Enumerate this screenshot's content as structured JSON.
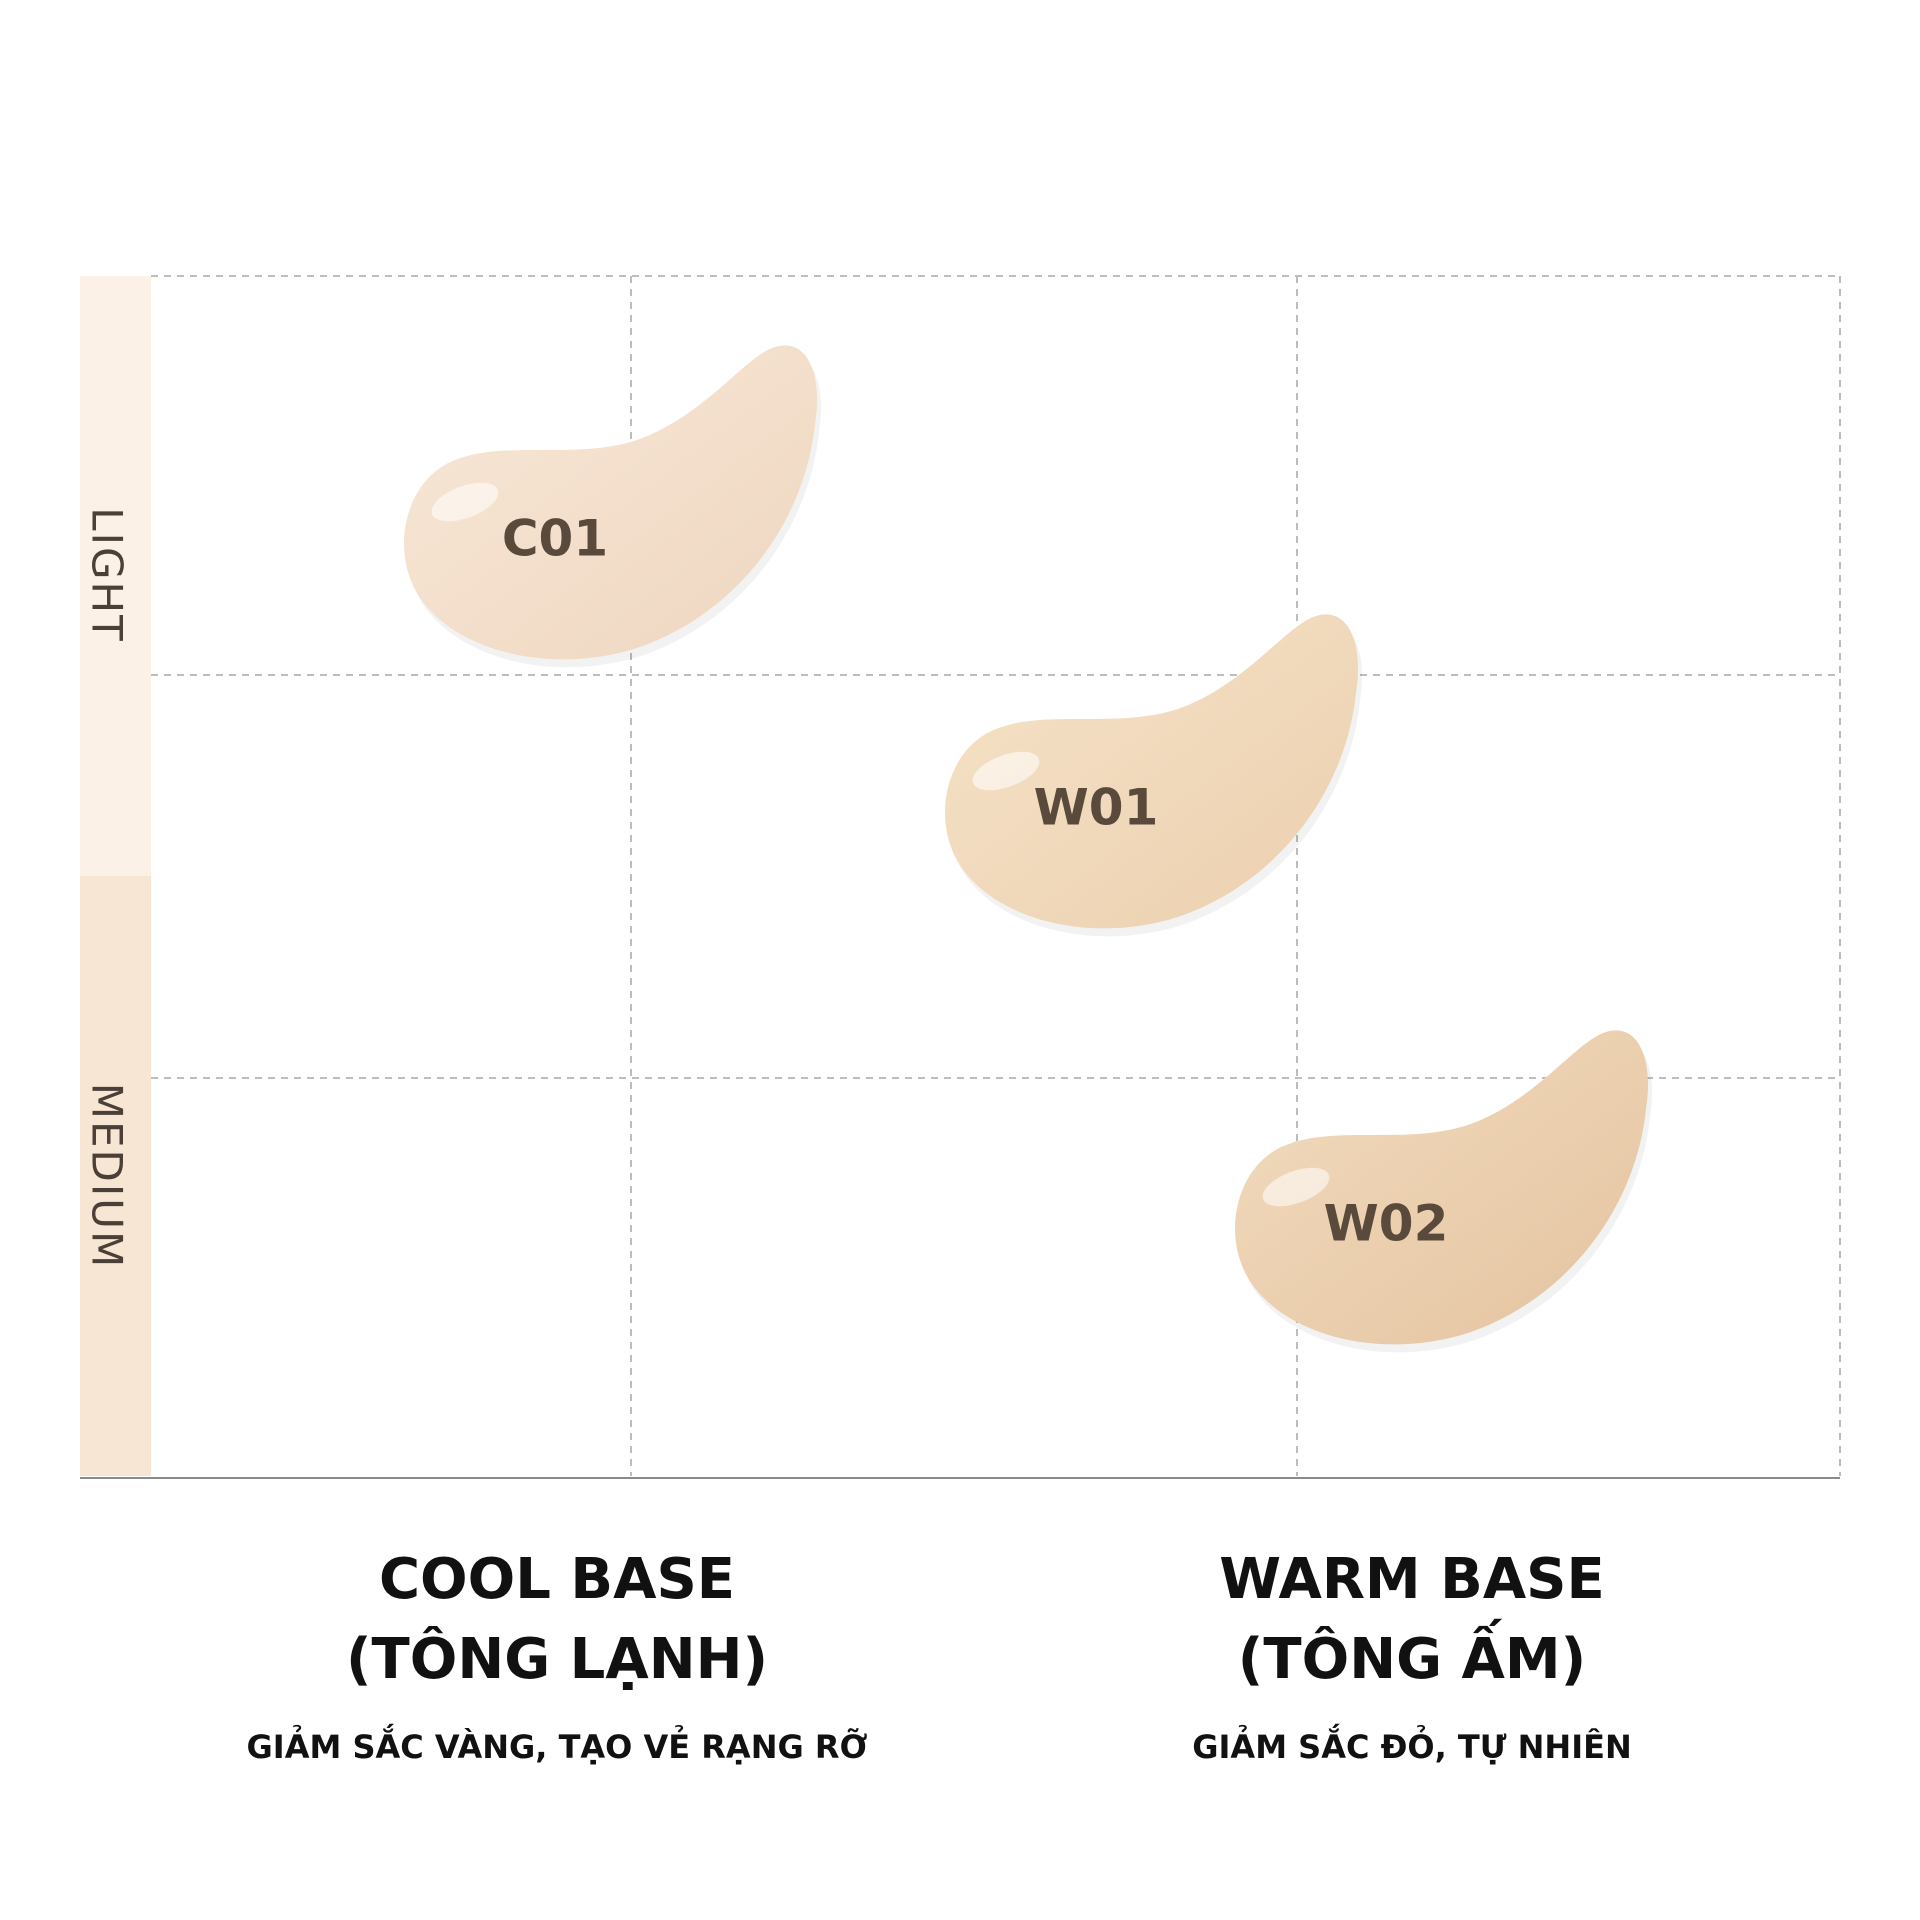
{
  "y_axis": {
    "labels": [
      "LIGHT",
      "MEDIUM"
    ]
  },
  "swatches": [
    {
      "label": "C01"
    },
    {
      "label": "W01"
    },
    {
      "label": "W02"
    }
  ],
  "columns": [
    {
      "title": [
        "COOL BASE",
        "(TÔNG LẠNH)"
      ],
      "subtitle": "GIẢM SẮC VÀNG, TẠO VẺ RẠNG RỠ"
    },
    {
      "title": [
        "WARM BASE",
        "(TÔNG ẤM)"
      ],
      "subtitle": "GIẢM SẮC ĐỎ, TỰ NHIÊN"
    }
  ]
}
